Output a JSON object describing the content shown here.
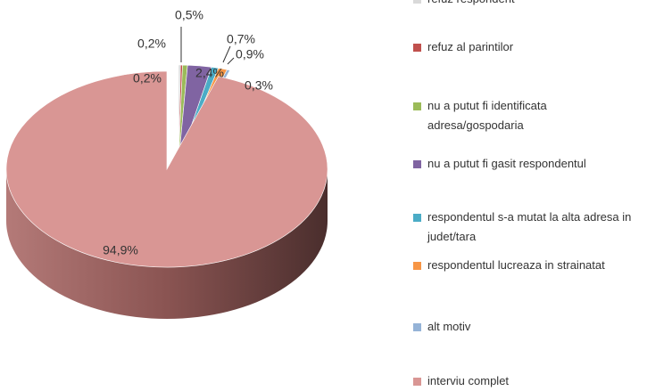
{
  "chart_data": {
    "type": "pie",
    "categories": [
      "refuz respondent",
      "refuz al parintilor",
      "nu a putut fi identificata adresa/gospodaria",
      "nu a putut fi gasit respondentul",
      "respondentul s-a mutat la alta adresa in judet/tara",
      "respondentul lucreaza in strainatat",
      "alt motiv",
      "interviu complet"
    ],
    "values": [
      0.2,
      0.2,
      0.5,
      2.4,
      0.7,
      0.9,
      0.3,
      94.9
    ],
    "value_labels": [
      "0,2%",
      "0,2%",
      "0,5%",
      "2,4%",
      "0,7%",
      "0,9%",
      "0,3%",
      "94,9%"
    ],
    "colors": [
      "#d9d9d9",
      "#c0504d",
      "#9bbb59",
      "#8064a2",
      "#4bacc6",
      "#f79646",
      "#95b3d7",
      "#d99694"
    ],
    "legend": "right"
  }
}
